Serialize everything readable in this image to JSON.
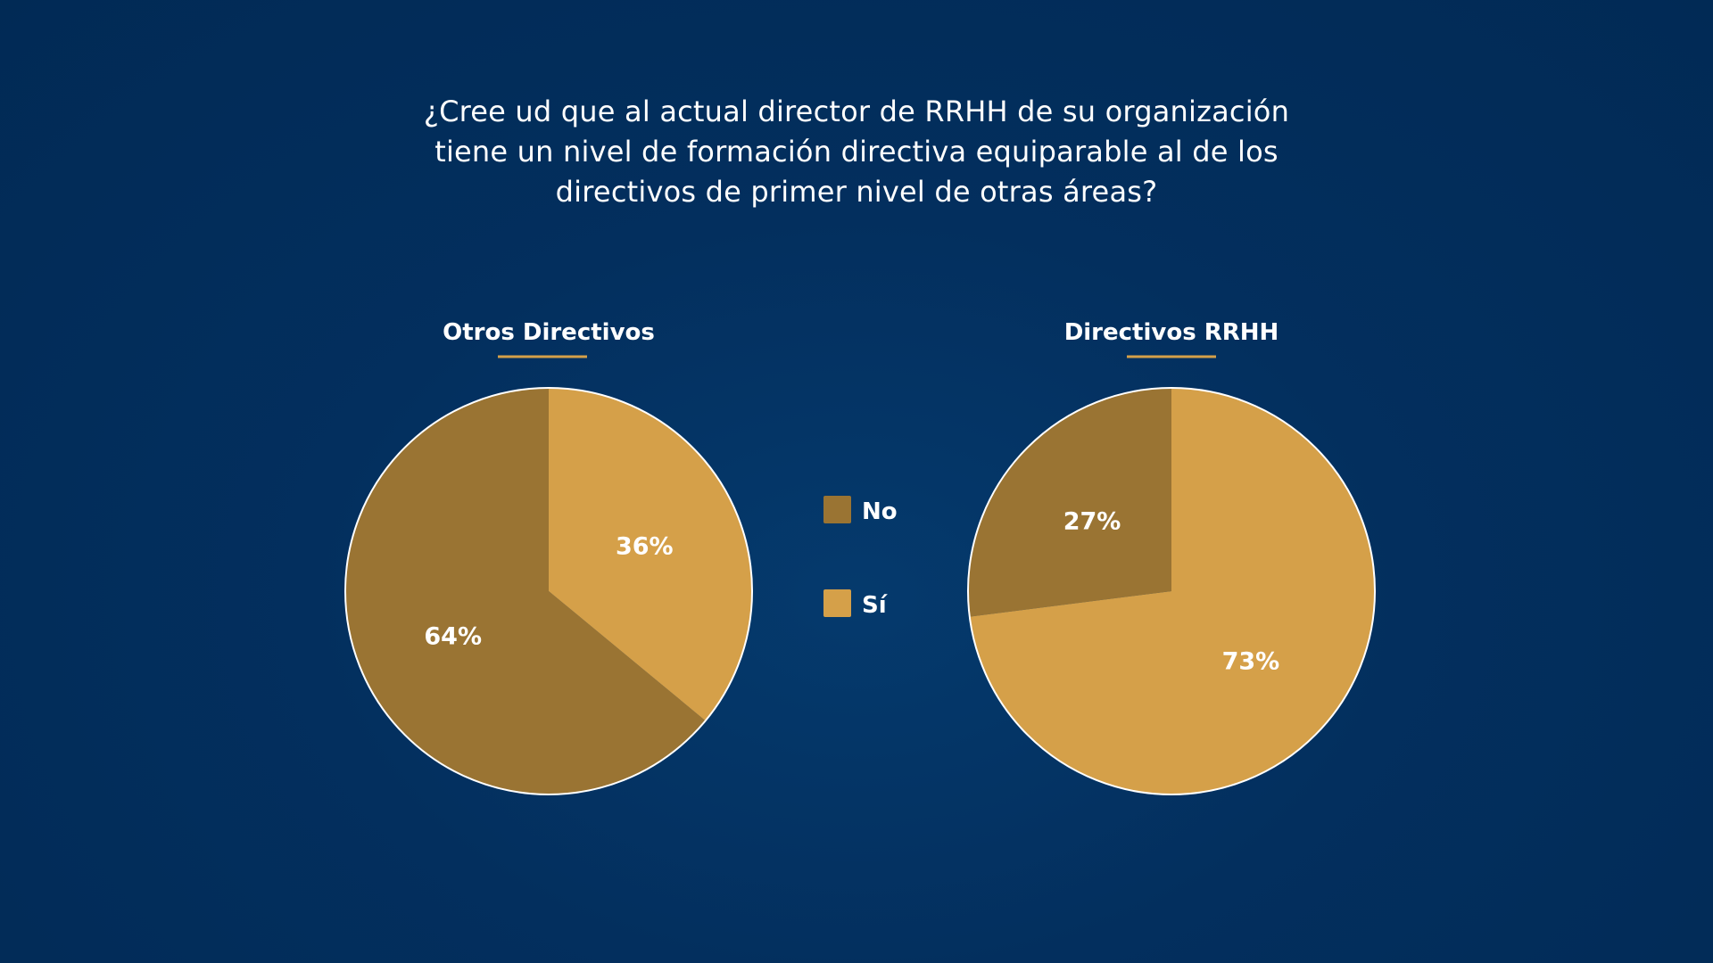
{
  "question": {
    "lines": [
      "¿Cree ud que al actual director de RRHH de su organización",
      "tiene un nivel de formación directiva equiparable al de los",
      "directivos de primer nivel de otras áreas?"
    ]
  },
  "colors": {
    "no": "#9a7433",
    "si": "#d5a049",
    "underline": "#d5a049",
    "outline": "#ffffff"
  },
  "chart_data": [
    {
      "type": "pie",
      "title": "Otros Directivos",
      "categories": [
        "No",
        "Sí"
      ],
      "values": [
        64,
        36
      ],
      "labels": [
        "64%",
        "36%"
      ]
    },
    {
      "type": "pie",
      "title": "Directivos RRHH",
      "categories": [
        "No",
        "Sí"
      ],
      "values": [
        27,
        73
      ],
      "labels": [
        "27%",
        "73%"
      ]
    }
  ],
  "legend": {
    "placement": "center",
    "items": [
      {
        "label": "No",
        "color": "#9a7433"
      },
      {
        "label": "Sí",
        "color": "#d5a049"
      }
    ]
  }
}
